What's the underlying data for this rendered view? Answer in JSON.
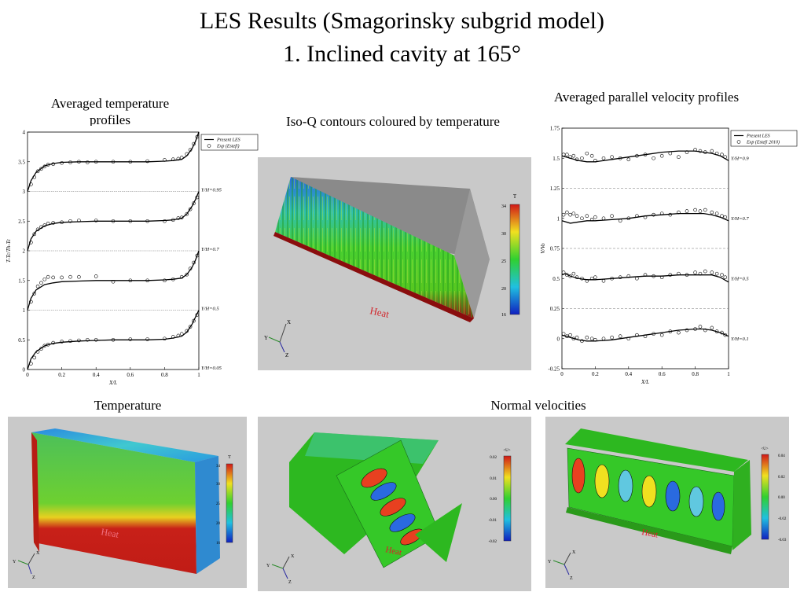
{
  "title": {
    "line1": "LES Results (Smagorinsky subgrid model)",
    "line2": "1. Inclined cavity at 165°"
  },
  "captions": {
    "temp_profiles": "Averaged temperature profiles",
    "iso_q": "Iso-Q contours coloured by temperature",
    "vel_profiles": "Averaged parallel velocity profiles",
    "temperature": "Temperature",
    "normal_velocities": "Normal velocities"
  },
  "chart_data": [
    {
      "type": "line",
      "xlabel": "X/L",
      "ylabel": "T-Tc/Th-Tc",
      "xlim": [
        0,
        1
      ],
      "ylim": [
        0,
        4
      ],
      "xticks": [
        "0",
        "0.2",
        "0.4",
        "0.6",
        "0.8",
        "1"
      ],
      "yticks": [
        "0",
        "0.5",
        "1",
        "1.5",
        "2",
        "2.5",
        "3",
        "3.5",
        "4"
      ],
      "legend": [
        "Present LES",
        "Exp (Estefi)"
      ],
      "legend_position": "top-right-outside",
      "curve_labels": [
        "Y/H=0.95",
        "Y/H=0.7",
        "Y/H=0.5",
        "Y/H=0.05"
      ],
      "separators": [
        1,
        2,
        3
      ],
      "series": [
        {
          "offset": 3,
          "x": [
            0,
            0.02,
            0.05,
            0.1,
            0.15,
            0.2,
            0.3,
            0.4,
            0.5,
            0.6,
            0.7,
            0.8,
            0.85,
            0.9,
            0.93,
            0.96,
            0.98,
            1
          ],
          "y": [
            0,
            0.18,
            0.32,
            0.43,
            0.47,
            0.49,
            0.5,
            0.5,
            0.5,
            0.5,
            0.5,
            0.51,
            0.52,
            0.54,
            0.6,
            0.72,
            0.84,
            1.0
          ]
        },
        {
          "offset": 2,
          "x": [
            0,
            0.02,
            0.05,
            0.1,
            0.15,
            0.2,
            0.3,
            0.4,
            0.5,
            0.6,
            0.7,
            0.8,
            0.85,
            0.9,
            0.93,
            0.96,
            0.98,
            1
          ],
          "y": [
            0,
            0.2,
            0.33,
            0.42,
            0.46,
            0.48,
            0.49,
            0.5,
            0.5,
            0.5,
            0.5,
            0.51,
            0.52,
            0.55,
            0.62,
            0.75,
            0.86,
            1.0
          ]
        },
        {
          "offset": 1,
          "x": [
            0,
            0.02,
            0.05,
            0.1,
            0.15,
            0.2,
            0.3,
            0.4,
            0.5,
            0.6,
            0.7,
            0.8,
            0.85,
            0.9,
            0.93,
            0.96,
            0.98,
            1
          ],
          "y": [
            0,
            0.2,
            0.34,
            0.43,
            0.46,
            0.48,
            0.49,
            0.5,
            0.5,
            0.5,
            0.5,
            0.51,
            0.52,
            0.54,
            0.6,
            0.72,
            0.84,
            1.0
          ]
        },
        {
          "offset": 0,
          "x": [
            0,
            0.02,
            0.05,
            0.1,
            0.15,
            0.2,
            0.3,
            0.4,
            0.5,
            0.6,
            0.7,
            0.8,
            0.85,
            0.9,
            0.93,
            0.96,
            0.98,
            1
          ],
          "y": [
            0,
            0.18,
            0.3,
            0.4,
            0.44,
            0.46,
            0.48,
            0.49,
            0.5,
            0.5,
            0.5,
            0.51,
            0.53,
            0.56,
            0.63,
            0.76,
            0.88,
            1.0
          ]
        }
      ],
      "points": [
        {
          "offset": 3,
          "x": [
            0.02,
            0.04,
            0.06,
            0.08,
            0.1,
            0.12,
            0.15,
            0.2,
            0.25,
            0.3,
            0.35,
            0.4,
            0.5,
            0.6,
            0.7,
            0.8,
            0.85,
            0.88,
            0.9,
            0.93,
            0.95,
            0.97,
            0.99
          ],
          "y": [
            0.12,
            0.24,
            0.34,
            0.38,
            0.42,
            0.45,
            0.46,
            0.48,
            0.49,
            0.5,
            0.49,
            0.5,
            0.5,
            0.5,
            0.51,
            0.53,
            0.54,
            0.55,
            0.57,
            0.63,
            0.7,
            0.8,
            0.92
          ]
        },
        {
          "offset": 2,
          "x": [
            0.02,
            0.04,
            0.06,
            0.08,
            0.1,
            0.12,
            0.15,
            0.2,
            0.25,
            0.3,
            0.4,
            0.5,
            0.6,
            0.7,
            0.8,
            0.85,
            0.88,
            0.9,
            0.93,
            0.95,
            0.97,
            0.99
          ],
          "y": [
            0.14,
            0.28,
            0.36,
            0.4,
            0.43,
            0.46,
            0.47,
            0.48,
            0.5,
            0.51,
            0.51,
            0.5,
            0.5,
            0.5,
            0.5,
            0.52,
            0.55,
            0.56,
            0.62,
            0.7,
            0.8,
            0.9
          ]
        },
        {
          "offset": 1,
          "x": [
            0.02,
            0.04,
            0.06,
            0.08,
            0.1,
            0.12,
            0.15,
            0.2,
            0.25,
            0.3,
            0.4,
            0.5,
            0.6,
            0.7,
            0.8,
            0.85,
            0.9,
            0.93,
            0.95,
            0.97,
            0.99
          ],
          "y": [
            0.14,
            0.28,
            0.4,
            0.46,
            0.52,
            0.56,
            0.55,
            0.55,
            0.56,
            0.56,
            0.57,
            0.48,
            0.5,
            0.5,
            0.5,
            0.52,
            0.56,
            0.6,
            0.7,
            0.8,
            0.92
          ]
        },
        {
          "offset": 0,
          "x": [
            0.02,
            0.04,
            0.06,
            0.08,
            0.1,
            0.12,
            0.15,
            0.2,
            0.25,
            0.3,
            0.35,
            0.4,
            0.5,
            0.6,
            0.7,
            0.8,
            0.85,
            0.88,
            0.9,
            0.93,
            0.95,
            0.97,
            0.99
          ],
          "y": [
            0.1,
            0.2,
            0.3,
            0.35,
            0.4,
            0.42,
            0.45,
            0.47,
            0.48,
            0.49,
            0.5,
            0.5,
            0.5,
            0.51,
            0.51,
            0.52,
            0.55,
            0.57,
            0.6,
            0.65,
            0.72,
            0.82,
            0.92
          ]
        }
      ]
    },
    {
      "type": "line",
      "xlabel": "X/L",
      "ylabel": "V/Vo",
      "xlim": [
        0,
        1
      ],
      "ylim": [
        -0.25,
        1.75
      ],
      "xticks": [
        "0",
        "0.2",
        "0.4",
        "0.6",
        "0.8",
        "1"
      ],
      "yticks": [
        "-0.25",
        "0",
        "0.25",
        "0.5",
        "0.75",
        "1",
        "1.25",
        "1.5",
        "1.75"
      ],
      "legend": [
        "Present LES",
        "Exp (Estefi 2010)"
      ],
      "legend_position": "top-right-outside",
      "curve_labels": [
        "Y/H=0.9",
        "Y/H=0.7",
        "Y/H=0.5",
        "Y/H=0.1"
      ],
      "separators": [
        0.25,
        0.75,
        1.25
      ],
      "series": [
        {
          "offset": 1.5,
          "x": [
            0,
            0.05,
            0.1,
            0.15,
            0.2,
            0.3,
            0.4,
            0.5,
            0.6,
            0.7,
            0.8,
            0.85,
            0.9,
            0.95,
            1
          ],
          "y": [
            0.02,
            0.0,
            -0.02,
            -0.03,
            -0.03,
            -0.01,
            0.01,
            0.03,
            0.05,
            0.06,
            0.06,
            0.05,
            0.04,
            0.02,
            -0.02
          ]
        },
        {
          "offset": 1.0,
          "x": [
            0,
            0.05,
            0.1,
            0.15,
            0.2,
            0.3,
            0.4,
            0.5,
            0.6,
            0.7,
            0.8,
            0.85,
            0.9,
            0.95,
            1
          ],
          "y": [
            -0.02,
            -0.04,
            -0.03,
            -0.02,
            -0.02,
            -0.01,
            0.0,
            0.02,
            0.03,
            0.04,
            0.04,
            0.04,
            0.03,
            0.01,
            -0.02
          ]
        },
        {
          "offset": 0.5,
          "x": [
            0,
            0.02,
            0.05,
            0.1,
            0.15,
            0.2,
            0.3,
            0.4,
            0.5,
            0.6,
            0.7,
            0.8,
            0.85,
            0.9,
            0.95,
            1
          ],
          "y": [
            0.03,
            0.04,
            0.02,
            0.0,
            -0.01,
            -0.01,
            0.0,
            0.01,
            0.02,
            0.02,
            0.03,
            0.03,
            0.03,
            0.03,
            0.01,
            -0.03
          ]
        },
        {
          "offset": 0,
          "x": [
            0,
            0.05,
            0.1,
            0.15,
            0.2,
            0.3,
            0.4,
            0.5,
            0.6,
            0.7,
            0.8,
            0.85,
            0.9,
            0.95,
            1
          ],
          "y": [
            0.03,
            0.01,
            -0.01,
            -0.02,
            -0.02,
            -0.01,
            0.01,
            0.03,
            0.05,
            0.07,
            0.08,
            0.08,
            0.07,
            0.05,
            0.02
          ]
        }
      ],
      "points": [
        {
          "offset": 1.5,
          "x": [
            0.01,
            0.03,
            0.05,
            0.07,
            0.09,
            0.12,
            0.15,
            0.18,
            0.2,
            0.25,
            0.3,
            0.35,
            0.4,
            0.45,
            0.5,
            0.55,
            0.6,
            0.65,
            0.7,
            0.75,
            0.8,
            0.83,
            0.86,
            0.9,
            0.93,
            0.96,
            0.98
          ],
          "y": [
            0.03,
            0.03,
            0.01,
            0.02,
            -0.01,
            0.0,
            0.04,
            0.02,
            -0.02,
            0.0,
            0.01,
            0.0,
            -0.01,
            0.02,
            0.03,
            0.0,
            0.02,
            0.04,
            0.01,
            0.05,
            0.07,
            0.06,
            0.05,
            0.06,
            0.04,
            0.03,
            0.01
          ]
        },
        {
          "offset": 1.0,
          "x": [
            0.01,
            0.03,
            0.05,
            0.07,
            0.09,
            0.12,
            0.15,
            0.18,
            0.2,
            0.25,
            0.3,
            0.35,
            0.4,
            0.45,
            0.5,
            0.55,
            0.6,
            0.65,
            0.7,
            0.75,
            0.8,
            0.83,
            0.86,
            0.9,
            0.93,
            0.96,
            0.98
          ],
          "y": [
            0.03,
            0.05,
            0.03,
            0.04,
            0.02,
            0.0,
            0.02,
            -0.01,
            0.01,
            0.0,
            0.02,
            -0.02,
            0.0,
            0.02,
            0.01,
            0.03,
            0.04,
            0.03,
            0.05,
            0.06,
            0.07,
            0.06,
            0.07,
            0.05,
            0.04,
            0.02,
            0.01
          ]
        },
        {
          "offset": 0.5,
          "x": [
            0.01,
            0.03,
            0.05,
            0.07,
            0.09,
            0.12,
            0.15,
            0.18,
            0.2,
            0.25,
            0.3,
            0.35,
            0.4,
            0.45,
            0.5,
            0.55,
            0.6,
            0.65,
            0.7,
            0.75,
            0.8,
            0.83,
            0.86,
            0.9,
            0.93,
            0.96,
            0.98
          ],
          "y": [
            0.05,
            0.03,
            0.02,
            0.04,
            0.01,
            0.0,
            -0.02,
            0.0,
            0.01,
            -0.02,
            0.0,
            0.01,
            0.02,
            0.0,
            0.03,
            0.02,
            0.01,
            0.03,
            0.04,
            0.03,
            0.05,
            0.04,
            0.06,
            0.05,
            0.04,
            0.03,
            0.01
          ]
        },
        {
          "offset": 0,
          "x": [
            0.01,
            0.03,
            0.05,
            0.07,
            0.09,
            0.12,
            0.15,
            0.18,
            0.2,
            0.25,
            0.3,
            0.35,
            0.4,
            0.45,
            0.5,
            0.55,
            0.6,
            0.65,
            0.7,
            0.75,
            0.8,
            0.83,
            0.86,
            0.9,
            0.93,
            0.96,
            0.98
          ],
          "y": [
            0.04,
            0.02,
            0.03,
            0.0,
            0.01,
            -0.02,
            0.01,
            0.0,
            -0.01,
            0.0,
            0.01,
            0.02,
            0.0,
            0.03,
            0.02,
            0.04,
            0.03,
            0.06,
            0.05,
            0.07,
            0.08,
            0.1,
            0.07,
            0.09,
            0.06,
            0.05,
            0.03
          ]
        }
      ]
    }
  ],
  "iso_view": {
    "colorbar_title": "T",
    "colorbar_ticks": [
      "34",
      "30",
      "25",
      "20",
      "16"
    ],
    "heat_label": "Heat",
    "axes": [
      "X",
      "Y",
      "Z"
    ]
  },
  "temp_view": {
    "colorbar_title": "T",
    "colorbar_ticks": [
      "34",
      "30",
      "25",
      "20",
      "16"
    ],
    "heat_label": "Heat",
    "axes": [
      "X",
      "Y",
      "Z"
    ]
  },
  "normal_view_1": {
    "colorbar_title": "<U>",
    "colorbar_ticks": [
      "0.02",
      "0.01",
      "0.00",
      "-0.01",
      "-0.02"
    ],
    "heat_label": "Heat",
    "axes": [
      "X",
      "Y",
      "Z"
    ]
  },
  "normal_view_2": {
    "colorbar_title": "<U>",
    "colorbar_ticks": [
      "0.04",
      "0.02",
      "0.00",
      "-0.02",
      "-0.03"
    ],
    "heat_label": "Heat",
    "axes": [
      "X",
      "Y",
      "Z"
    ]
  },
  "colors": {
    "panel_bg": "#c9c9c9",
    "heat_red": "#d1282e",
    "cold_face": "#9a1010",
    "sim_green": "#33c020"
  }
}
